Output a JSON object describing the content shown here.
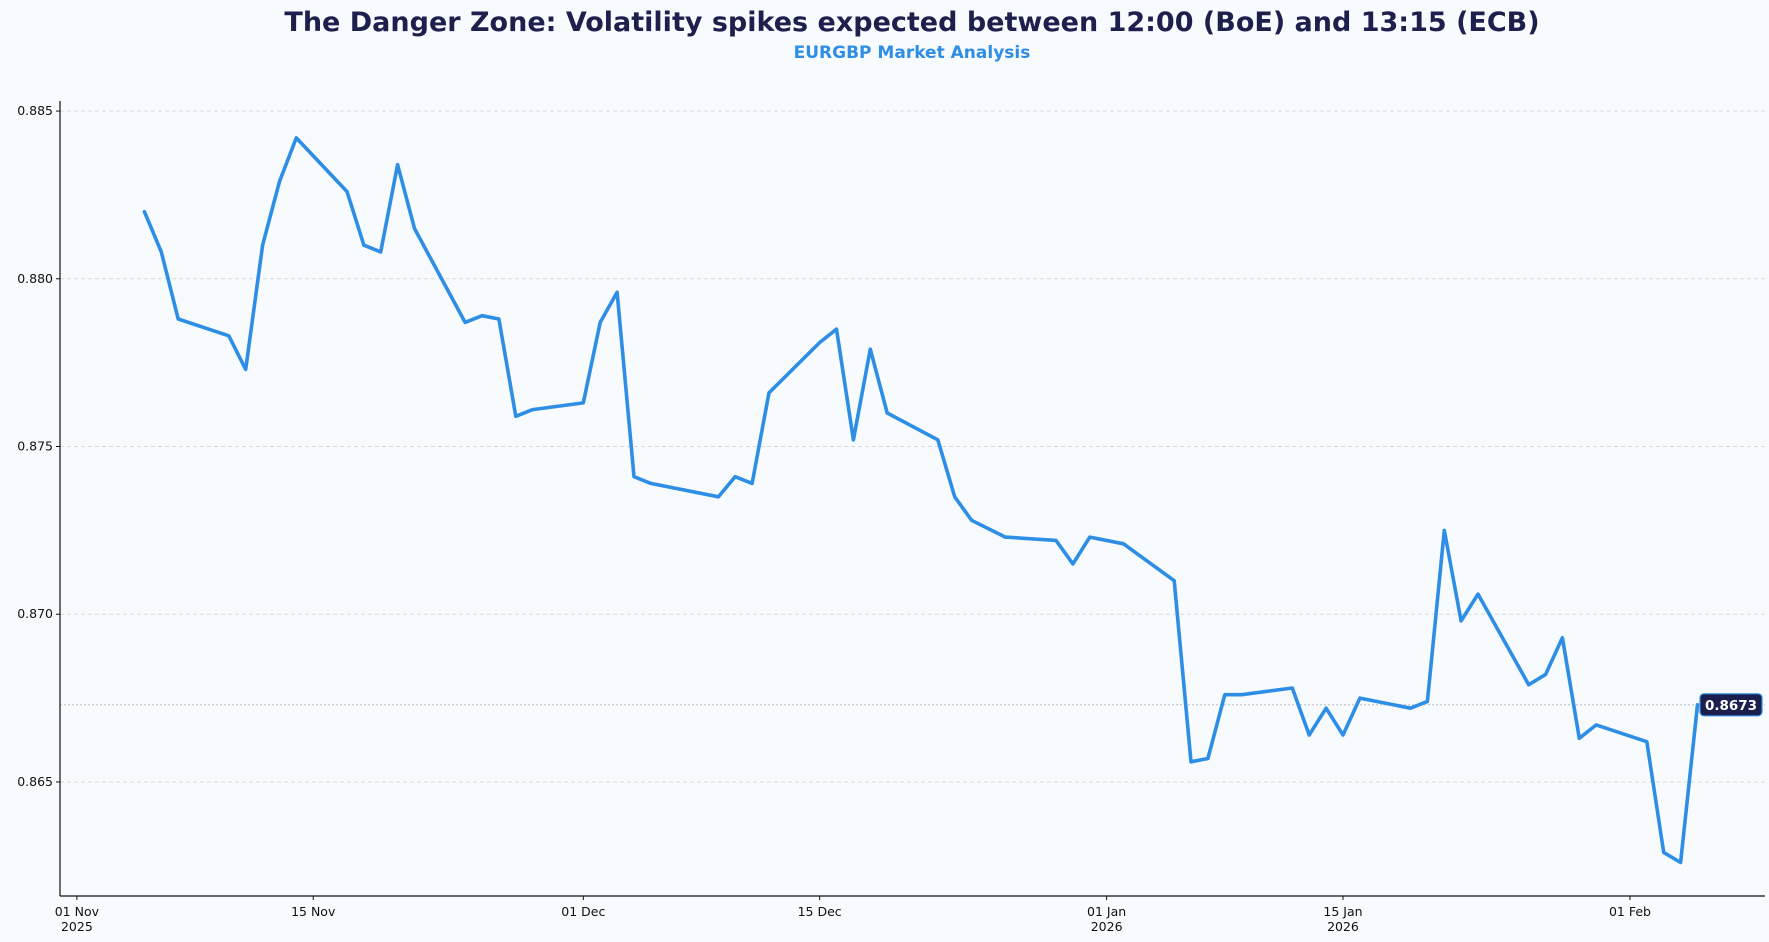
{
  "chart_data": {
    "type": "line",
    "title": "The Danger Zone: Volatility spikes expected between 12:00 (BoE) and 13:15 (ECB)",
    "subtitle": "EURGBP Market Analysis",
    "xlabel": "",
    "ylabel": "",
    "xlim": [
      "2025-10-31",
      "2026-02-09"
    ],
    "ylim": [
      0.8616,
      0.8853
    ],
    "grid": "horizontal dashed",
    "legend": "none",
    "line_color": "#2e8ee6",
    "yticks": [
      0.865,
      0.87,
      0.875,
      0.88,
      0.885
    ],
    "ytick_labels": [
      "0.865",
      "0.870",
      "0.875",
      "0.880",
      "0.885"
    ],
    "xticks": [
      {
        "date": "2025-11-01",
        "label": [
          "01 Nov",
          "2025"
        ]
      },
      {
        "date": "2025-11-15",
        "label": [
          "15 Nov"
        ]
      },
      {
        "date": "2025-12-01",
        "label": [
          "01 Dec"
        ]
      },
      {
        "date": "2025-12-15",
        "label": [
          "15 Dec"
        ]
      },
      {
        "date": "2026-01-01",
        "label": [
          "01 Jan",
          "2026"
        ]
      },
      {
        "date": "2026-01-15",
        "label": [
          "15 Jan",
          "2026"
        ]
      },
      {
        "date": "2026-02-01",
        "label": [
          "01 Feb"
        ]
      }
    ],
    "last_value_label": "0.8673",
    "last_value": 0.8673,
    "x": [
      "2025-11-05",
      "2025-11-06",
      "2025-11-07",
      "2025-11-10",
      "2025-11-11",
      "2025-11-12",
      "2025-11-13",
      "2025-11-14",
      "2025-11-17",
      "2025-11-18",
      "2025-11-19",
      "2025-11-20",
      "2025-11-21",
      "2025-11-24",
      "2025-11-25",
      "2025-11-26",
      "2025-11-27",
      "2025-11-28",
      "2025-12-01",
      "2025-12-02",
      "2025-12-03",
      "2025-12-04",
      "2025-12-05",
      "2025-12-09",
      "2025-12-10",
      "2025-12-11",
      "2025-12-12",
      "2025-12-15",
      "2025-12-16",
      "2025-12-17",
      "2025-12-18",
      "2025-12-19",
      "2025-12-22",
      "2025-12-23",
      "2025-12-24",
      "2025-12-26",
      "2025-12-29",
      "2025-12-30",
      "2025-12-31",
      "2026-01-02",
      "2026-01-05",
      "2026-01-06",
      "2026-01-07",
      "2026-01-08",
      "2026-01-09",
      "2026-01-12",
      "2026-01-13",
      "2026-01-14",
      "2026-01-15",
      "2026-01-16",
      "2026-01-19",
      "2026-01-20",
      "2026-01-21",
      "2026-01-22",
      "2026-01-23",
      "2026-01-26",
      "2026-01-27",
      "2026-01-28",
      "2026-01-29",
      "2026-01-30",
      "2026-02-02",
      "2026-02-03",
      "2026-02-04",
      "2026-02-05"
    ],
    "series": [
      {
        "values": [
          0.882,
          0.8808,
          0.8788,
          0.8783,
          0.8773,
          0.881,
          0.8829,
          0.8842,
          0.8826,
          0.881,
          0.8808,
          0.8834,
          0.8815,
          0.8787,
          0.8789,
          0.8788,
          0.8759,
          0.8761,
          0.8763,
          0.8787,
          0.8796,
          0.8741,
          0.8739,
          0.8735,
          0.8741,
          0.8739,
          0.8766,
          0.8781,
          0.8785,
          0.8752,
          0.8779,
          0.876,
          0.8752,
          0.8735,
          0.8728,
          0.8723,
          0.8722,
          0.8715,
          0.8723,
          0.8721,
          0.871,
          0.8656,
          0.8657,
          0.8676,
          0.8676,
          0.8678,
          0.8664,
          0.8672,
          0.8664,
          0.8675,
          0.8672,
          0.8674,
          0.8725,
          0.8698,
          0.8706,
          0.8679,
          0.8682,
          0.8693,
          0.8663,
          0.8667,
          0.8662,
          0.8629,
          0.8626,
          0.8673
        ]
      }
    ]
  }
}
